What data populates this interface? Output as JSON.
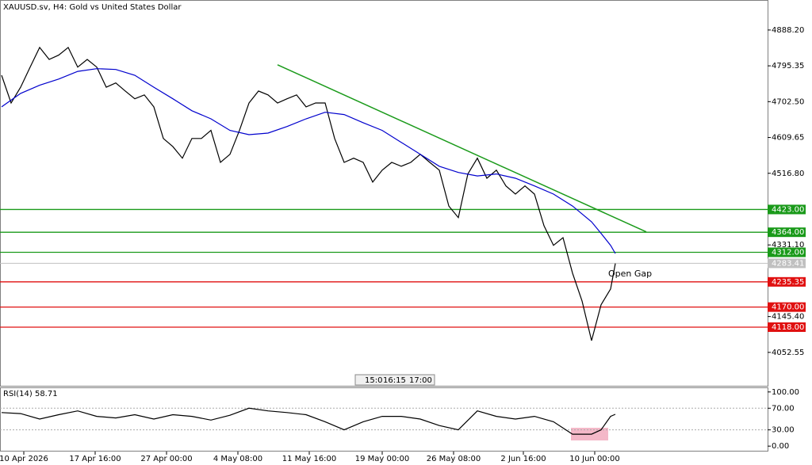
{
  "chart_data": [
    {
      "type": "line",
      "title": "XAUUSD.sv, H4:  Gold vs United States Dollar",
      "xlim": [
        -0.5,
        241.5
      ],
      "xticks": [
        {
          "value": 7,
          "label": "10 Apr 2026"
        },
        {
          "value": 29.5,
          "label": "17 Apr 16:00"
        },
        {
          "value": 52,
          "label": "27 Apr 00:00"
        },
        {
          "value": 74.5,
          "label": "4 May 08:00"
        },
        {
          "value": 97,
          "label": "11 May 16:00"
        },
        {
          "value": 120,
          "label": "19 May 00:00"
        },
        {
          "value": 142.5,
          "label": "26 May 08:00"
        },
        {
          "value": 164.5,
          "label": "2 Jun 16:00"
        },
        {
          "value": 187,
          "label": "10 Jun 00:00"
        }
      ],
      "ylim": [
        3966,
        4966
      ],
      "yticks": [
        {
          "value": 4888.2,
          "label": "4888.20"
        },
        {
          "value": 4795.35,
          "label": "4795.35"
        },
        {
          "value": 4702.5,
          "label": "4702.50"
        },
        {
          "value": 4609.65,
          "label": "4609.65"
        },
        {
          "value": 4516.8,
          "label": "4516.80"
        },
        {
          "value": 4331.1,
          "label": "4331.10"
        },
        {
          "value": 4145.4,
          "label": "4145.40"
        },
        {
          "value": 4052.55,
          "label": "4052.55"
        }
      ],
      "series": [
        {
          "color": "#000000",
          "x": [
            0,
            3,
            6,
            9,
            12,
            15,
            18,
            21,
            24,
            27,
            30,
            33,
            36,
            39,
            42,
            45,
            48,
            51,
            54,
            57,
            60,
            63,
            66,
            69,
            72,
            75,
            78,
            81,
            84,
            87,
            90,
            93,
            96,
            99,
            102,
            105,
            108,
            111,
            114,
            117,
            120,
            123,
            126,
            129,
            132,
            135,
            138,
            141,
            144,
            147,
            150,
            153,
            156,
            159,
            162,
            165,
            168,
            171,
            174,
            177,
            180,
            183,
            186,
            189,
            192,
            193.5
          ],
          "values": [
            4771,
            4699,
            4740,
            4792,
            4843,
            4812,
            4823,
            4843,
            4792,
            4812,
            4792,
            4740,
            4751,
            4730,
            4710,
            4720,
            4689,
            4607,
            4586,
            4556,
            4607,
            4607,
            4628,
            4545,
            4566,
            4628,
            4699,
            4730,
            4720,
            4699,
            4710,
            4720,
            4689,
            4699,
            4699,
            4607,
            4545,
            4556,
            4545,
            4494,
            4525,
            4545,
            4535,
            4545,
            4566,
            4545,
            4525,
            4432,
            4402,
            4515,
            4556,
            4504,
            4525,
            4484,
            4463,
            4484,
            4463,
            4381,
            4330,
            4350,
            4258,
            4186,
            4083,
            4176,
            4217,
            4283
          ]
        },
        {
          "color": "#0000cd",
          "x": [
            0,
            6,
            12,
            18,
            24,
            30,
            36,
            42,
            48,
            54,
            60,
            66,
            72,
            78,
            84,
            90,
            96,
            102,
            108,
            114,
            120,
            126,
            132,
            138,
            144,
            150,
            156,
            162,
            168,
            174,
            180,
            186,
            189,
            192,
            193.5
          ],
          "values": [
            4689,
            4724,
            4745,
            4761,
            4781,
            4788,
            4786,
            4771,
            4740,
            4710,
            4679,
            4658,
            4628,
            4617,
            4621,
            4638,
            4658,
            4675,
            4669,
            4648,
            4628,
            4597,
            4566,
            4535,
            4519,
            4510,
            4515,
            4504,
            4484,
            4463,
            4432,
            4391,
            4361,
            4330,
            4309
          ]
        }
      ],
      "trendline": {
        "color": "#1a9a1a",
        "x": [
          87,
          203.25
        ],
        "values": [
          4798,
          4365
        ]
      },
      "levels": [
        {
          "value": 4423,
          "label": "4423.00",
          "color": "#1a9a1a"
        },
        {
          "value": 4364,
          "label": "4364.00",
          "color": "#1a9a1a"
        },
        {
          "value": 4312,
          "label": "4312.00",
          "color": "#1a9a1a"
        },
        {
          "value": 4235.35,
          "label": "4235.35",
          "color": "#e01010"
        },
        {
          "value": 4170,
          "label": "4170.00",
          "color": "#e01010"
        },
        {
          "value": 4118,
          "label": "4118.00",
          "color": "#e01010"
        }
      ],
      "current_price": {
        "value": 4283.41,
        "label": "4283.41",
        "color": "#c0c0c0"
      },
      "annotations": [
        "Open Gap"
      ],
      "time_box": [
        "15:0",
        "16:15",
        "17:00"
      ]
    },
    {
      "type": "line",
      "title": "RSI(14) 58.71",
      "ylim": [
        -10,
        107
      ],
      "yticks": [
        {
          "value": 100,
          "label": "100.00"
        },
        {
          "value": 70,
          "label": "70.00"
        },
        {
          "value": 30,
          "label": "30.00"
        },
        {
          "value": 0,
          "label": "0.00"
        }
      ],
      "series": [
        {
          "color": "#000000",
          "x": [
            0,
            6,
            12,
            18,
            24,
            30,
            36,
            42,
            48,
            54,
            60,
            66,
            72,
            78,
            84,
            90,
            96,
            102,
            108,
            114,
            120,
            126,
            132,
            138,
            144,
            150,
            156,
            162,
            168,
            174,
            180,
            186,
            189,
            192,
            193.5
          ],
          "values": [
            62,
            60,
            50,
            58,
            65,
            55,
            52,
            58,
            50,
            58,
            55,
            48,
            57,
            70,
            65,
            62,
            58,
            45,
            30,
            45,
            55,
            55,
            50,
            38,
            30,
            65,
            55,
            50,
            55,
            45,
            22,
            22,
            30,
            55,
            58.71
          ]
        }
      ]
    }
  ]
}
